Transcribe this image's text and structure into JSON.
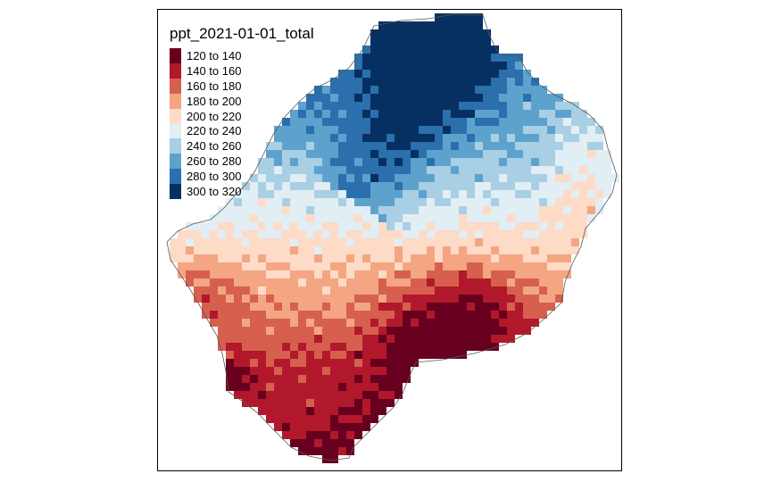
{
  "map": {
    "legend_title": "ppt_2021-01-01_total",
    "legend_items": [
      {
        "label": "120 to 140",
        "color": "#67001f"
      },
      {
        "label": "140 to 160",
        "color": "#b2182b"
      },
      {
        "label": "160 to 180",
        "color": "#d6604d"
      },
      {
        "label": "180 to 200",
        "color": "#f4a582"
      },
      {
        "label": "200 to 220",
        "color": "#fddbc7"
      },
      {
        "label": "220 to 240",
        "color": "#e1eef4"
      },
      {
        "label": "240 to 260",
        "color": "#a8cfe4"
      },
      {
        "label": "260 to 280",
        "color": "#5da2cd"
      },
      {
        "label": "280 to 300",
        "color": "#2b6fad"
      },
      {
        "label": "300 to 320",
        "color": "#053061"
      }
    ],
    "boundary_color": "#595959"
  }
}
